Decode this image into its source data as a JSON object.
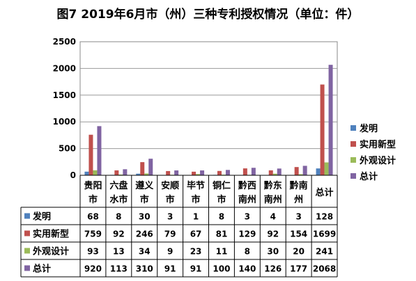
{
  "chart_data": {
    "type": "bar",
    "title": "图7  2019年6月市（州）三种专利授权情况（单位：件）",
    "categories": [
      [
        "贵阳",
        "市"
      ],
      [
        "六盘",
        "水市"
      ],
      [
        "遵义",
        "市"
      ],
      [
        "安顺",
        "市"
      ],
      [
        "毕节",
        "市"
      ],
      [
        "铜仁",
        "市"
      ],
      [
        "黔西",
        "南州"
      ],
      [
        "黔东",
        "南州"
      ],
      [
        "黔南",
        "州"
      ],
      [
        "总计",
        ""
      ]
    ],
    "ylim": [
      0,
      2500
    ],
    "yticks": [
      0,
      500,
      1000,
      1500,
      2000,
      2500
    ],
    "legend_position": "right",
    "series": [
      {
        "name": "发明",
        "color": "#4F81BD",
        "values": [
          68,
          8,
          30,
          3,
          1,
          8,
          3,
          4,
          3,
          128
        ]
      },
      {
        "name": "实用新型",
        "color": "#C0504D",
        "values": [
          759,
          92,
          246,
          79,
          67,
          81,
          129,
          92,
          154,
          1699
        ]
      },
      {
        "name": "外观设计",
        "color": "#9BBB59",
        "values": [
          93,
          13,
          34,
          9,
          23,
          11,
          8,
          30,
          20,
          241
        ]
      },
      {
        "name": "总计",
        "color": "#8064A2",
        "values": [
          920,
          113,
          310,
          91,
          91,
          100,
          140,
          126,
          177,
          2068
        ]
      }
    ]
  }
}
